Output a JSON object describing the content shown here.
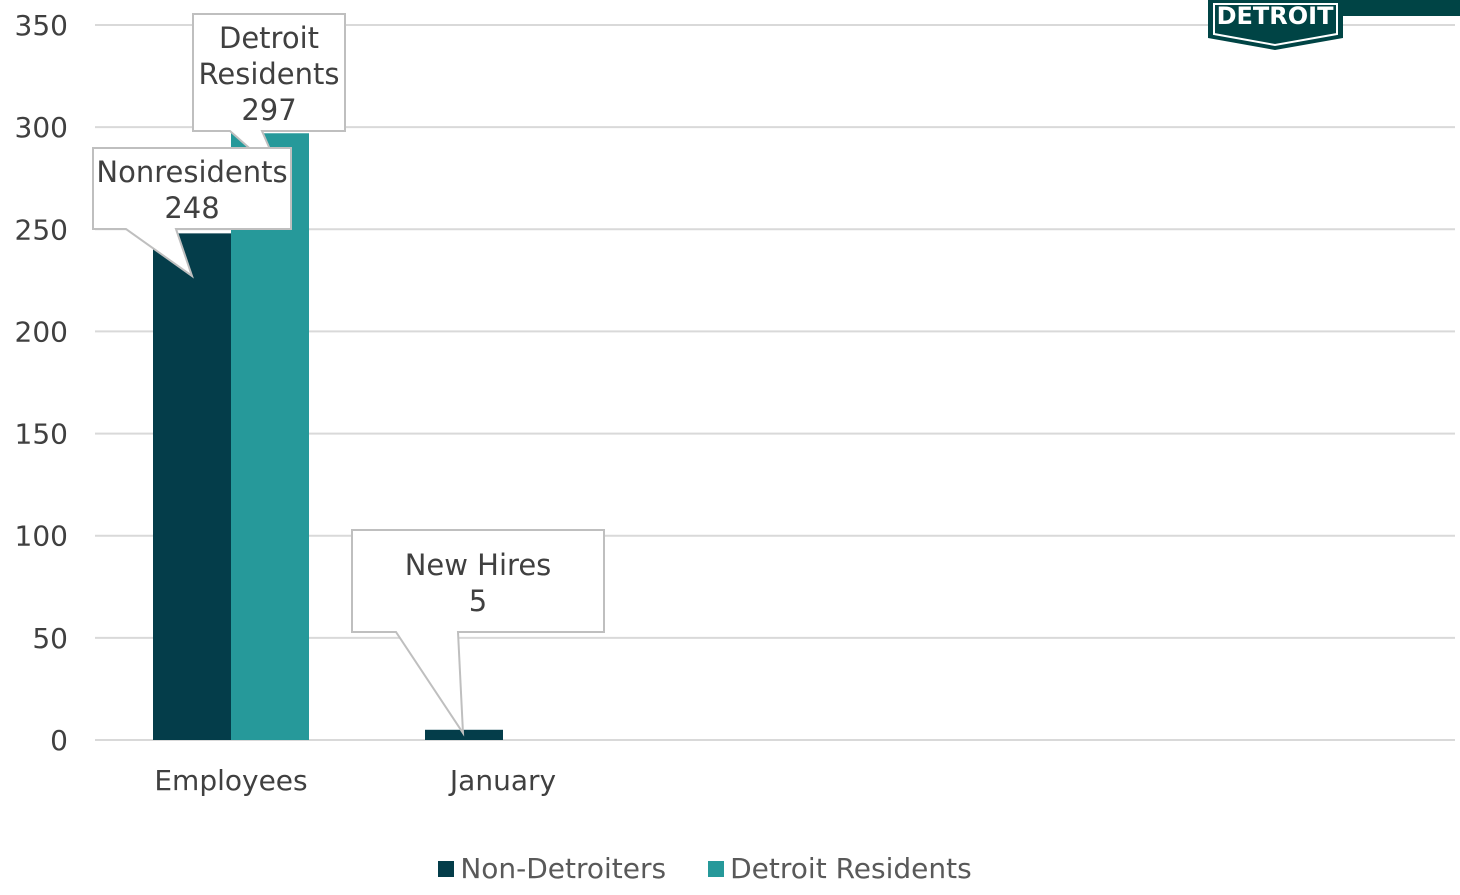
{
  "chart_data": {
    "type": "bar",
    "categories": [
      "Employees",
      "January"
    ],
    "series": [
      {
        "name": "Non-Detroiters",
        "values": [
          248,
          5
        ],
        "color": "#043D4A"
      },
      {
        "name": "Detroit Residents",
        "values": [
          297,
          0
        ],
        "color": "#26999A"
      }
    ],
    "ylim": [
      0,
      350
    ],
    "yticks": [
      0,
      50,
      100,
      150,
      200,
      250,
      300,
      350
    ],
    "grid": true,
    "legend_position": "bottom",
    "annotations": [
      {
        "id": "nonresidents",
        "label": "Nonresidents",
        "value": "248",
        "target": "Employees / Non-Detroiters"
      },
      {
        "id": "detroit-residents",
        "label": "Detroit Residents",
        "value": "297",
        "target": "Employees / Detroit Residents"
      },
      {
        "id": "new-hires",
        "label": "New Hires",
        "value": "5",
        "target": "January / Non-Detroiters"
      }
    ]
  },
  "logo": {
    "text": "DETROIT",
    "color": "#004445"
  }
}
